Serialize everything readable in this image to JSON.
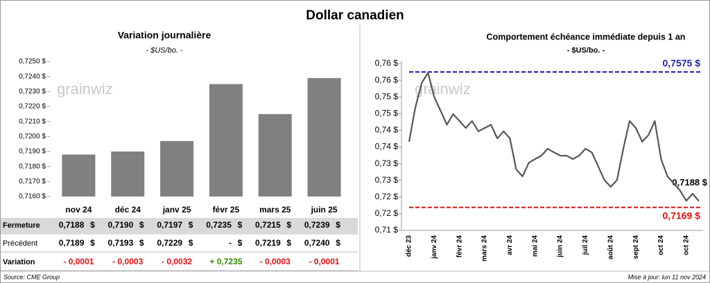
{
  "title": "Dollar canadien",
  "watermark": "grainwiz",
  "source": "Source: CME Group",
  "updated": "Mise à jour: lun 11 nov 2024",
  "chart_data": [
    {
      "type": "bar",
      "title": "Variation journalière",
      "subtitle": "- $US/bo. -",
      "color": "#808080",
      "categories": [
        "nov 24",
        "déc 24",
        "janv 25",
        "févr 25",
        "mars 25",
        "juin 25"
      ],
      "values": [
        0.7188,
        0.719,
        0.7197,
        0.7235,
        0.7215,
        0.7239
      ],
      "ylim": [
        0.716,
        0.725
      ],
      "yticks": [
        {
          "value": 0.716,
          "label": "0,7160 $"
        },
        {
          "value": 0.717,
          "label": "0,7170 $"
        },
        {
          "value": 0.718,
          "label": "0,7180 $"
        },
        {
          "value": 0.719,
          "label": "0,7190 $"
        },
        {
          "value": 0.72,
          "label": "0,7200 $"
        },
        {
          "value": 0.721,
          "label": "0,7210 $"
        },
        {
          "value": 0.722,
          "label": "0,7220 $"
        },
        {
          "value": 0.723,
          "label": "0,7230 $"
        },
        {
          "value": 0.724,
          "label": "0,7240 $"
        },
        {
          "value": 0.725,
          "label": "0,7250 $"
        }
      ],
      "grid": false
    },
    {
      "type": "line",
      "title": "Comportement échéance immédiate depuis 1 an",
      "subtitle": "- $US/bo. -",
      "grid": false,
      "categories": [
        "déc 23",
        null,
        null,
        null,
        "janv 24",
        null,
        null,
        null,
        "févr 24",
        null,
        null,
        null,
        "mars 24",
        null,
        null,
        null,
        "avr 24",
        null,
        null,
        null,
        "mai 24",
        null,
        null,
        null,
        "juin 24",
        null,
        null,
        null,
        "juil 24",
        null,
        null,
        null,
        "août 24",
        null,
        null,
        null,
        "sept 24",
        null,
        null,
        null,
        "oct 24",
        null,
        null,
        null,
        "oct 24",
        null,
        null
      ],
      "series": [
        {
          "name": "Dollar canadien",
          "color": "#555555",
          "values": [
            0.7366,
            0.7469,
            0.7542,
            0.7573,
            0.75,
            0.7459,
            0.7417,
            0.7449,
            0.7428,
            0.7407,
            0.7428,
            0.7397,
            0.7407,
            0.7417,
            0.7376,
            0.7397,
            0.7376,
            0.7283,
            0.7262,
            0.7303,
            0.7314,
            0.7324,
            0.7345,
            0.7334,
            0.7324,
            0.7324,
            0.7314,
            0.7324,
            0.7345,
            0.7334,
            0.7293,
            0.7251,
            0.7231,
            0.7251,
            0.7345,
            0.7428,
            0.7407,
            0.7366,
            0.7386,
            0.7428,
            0.7314,
            0.7262,
            0.7241,
            0.722,
            0.7189,
            0.721,
            0.7188
          ]
        }
      ],
      "ylim": [
        0.71,
        0.76
      ],
      "yticks": [
        {
          "value": 0.71,
          "label": "0,71 $"
        },
        {
          "value": 0.715,
          "label": "0,72 $"
        },
        {
          "value": 0.72,
          "label": "0,72 $"
        },
        {
          "value": 0.725,
          "label": "0,73 $"
        },
        {
          "value": 0.73,
          "label": "0,73 $"
        },
        {
          "value": 0.735,
          "label": "0,74 $"
        },
        {
          "value": 0.74,
          "label": "0,74 $"
        },
        {
          "value": 0.745,
          "label": "0,75 $"
        },
        {
          "value": 0.75,
          "label": "0,75 $"
        },
        {
          "value": 0.755,
          "label": "0,76 $"
        },
        {
          "value": 0.76,
          "label": "0,76 $"
        }
      ],
      "annotations": [
        {
          "value": 0.7575,
          "label": "0,7575 $",
          "color": "#1f1fa8",
          "dashed": true
        },
        {
          "value": 0.7169,
          "label": "0,7169 $",
          "color": "#e01010",
          "dashed": true
        },
        {
          "value": 0.7188,
          "label": "0,7188 $",
          "color": "#000000",
          "dashed": false
        }
      ]
    }
  ],
  "table": {
    "rows": [
      {
        "label": "Fermeture",
        "unit": "$",
        "background": "#d9d9d9",
        "cells": [
          "0,7188",
          "0,7190",
          "0,7197",
          "0,7235",
          "0,7215",
          "0,7239"
        ]
      },
      {
        "label": "Précédent",
        "unit": "$",
        "cells": [
          "0,7189",
          "0,7193",
          "0,7229",
          "-",
          "0,7219",
          "0,7240"
        ]
      },
      {
        "label": "Variation",
        "cells": [
          "- 0,0001",
          "- 0,0003",
          "- 0,0032",
          "+ 0,7235",
          "- 0,0003",
          "- 0,0001"
        ],
        "colors": [
          "#e01010",
          "#e01010",
          "#e01010",
          "#2e8b00",
          "#e01010",
          "#e01010"
        ]
      }
    ]
  }
}
